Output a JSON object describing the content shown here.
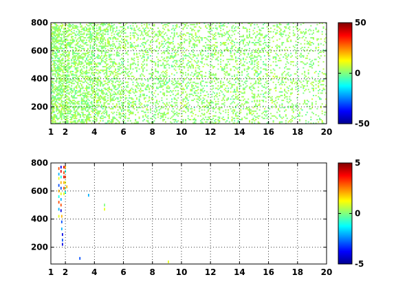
{
  "chart_data": [
    {
      "type": "heatmap",
      "title": "",
      "xlabel": "",
      "ylabel": "",
      "xlim": [
        1,
        20
      ],
      "ylim": [
        80,
        800
      ],
      "xticks": [
        1,
        2,
        4,
        6,
        8,
        10,
        12,
        14,
        16,
        18,
        20
      ],
      "yticks": [
        200,
        400,
        600,
        800
      ],
      "grid": true,
      "colormap": "jet",
      "colorbar": {
        "range": [
          -50,
          50
        ],
        "ticks": [
          -50,
          0,
          50
        ]
      },
      "density_by_x": [
        [
          1,
          0.6
        ],
        [
          2,
          0.55
        ],
        [
          3,
          0.4
        ],
        [
          4,
          0.42
        ],
        [
          5,
          0.36
        ],
        [
          6,
          0.26
        ],
        [
          8,
          0.22
        ],
        [
          10,
          0.24
        ],
        [
          12,
          0.22
        ],
        [
          14,
          0.22
        ],
        [
          16,
          0.2
        ],
        [
          18,
          0.16
        ],
        [
          20,
          0.14
        ]
      ],
      "value_spread": 6,
      "cells": []
    },
    {
      "type": "heatmap",
      "title": "",
      "xlabel": "",
      "ylabel": "",
      "xlim": [
        1,
        20
      ],
      "ylim": [
        80,
        800
      ],
      "xticks": [
        1,
        2,
        4,
        6,
        8,
        10,
        12,
        14,
        16,
        18,
        20
      ],
      "yticks": [
        200,
        400,
        600,
        800
      ],
      "grid": true,
      "colormap": "jet",
      "colorbar": {
        "range": [
          -5,
          5
        ],
        "ticks": [
          -5,
          0,
          5
        ]
      },
      "density_by_x": [],
      "value_spread": 0,
      "cells": [
        {
          "x": 1.55,
          "y": 760,
          "v": 3
        },
        {
          "x": 1.55,
          "y": 720,
          "v": -2
        },
        {
          "x": 1.55,
          "y": 690,
          "v": 1
        },
        {
          "x": 1.55,
          "y": 640,
          "v": -3
        },
        {
          "x": 1.55,
          "y": 600,
          "v": 2
        },
        {
          "x": 1.55,
          "y": 560,
          "v": -1
        },
        {
          "x": 1.55,
          "y": 520,
          "v": 3
        },
        {
          "x": 1.55,
          "y": 470,
          "v": -2
        },
        {
          "x": 1.55,
          "y": 420,
          "v": 1
        },
        {
          "x": 1.7,
          "y": 770,
          "v": -4
        },
        {
          "x": 1.7,
          "y": 740,
          "v": 4
        },
        {
          "x": 1.7,
          "y": 700,
          "v": -1
        },
        {
          "x": 1.7,
          "y": 660,
          "v": 2
        },
        {
          "x": 1.7,
          "y": 620,
          "v": -3
        },
        {
          "x": 1.7,
          "y": 580,
          "v": 1
        },
        {
          "x": 1.7,
          "y": 540,
          "v": -2
        },
        {
          "x": 1.7,
          "y": 500,
          "v": 3
        },
        {
          "x": 1.7,
          "y": 460,
          "v": -4
        },
        {
          "x": 1.75,
          "y": 420,
          "v": 2
        },
        {
          "x": 1.75,
          "y": 380,
          "v": -3
        },
        {
          "x": 1.75,
          "y": 330,
          "v": -2
        },
        {
          "x": 1.8,
          "y": 290,
          "v": -4
        },
        {
          "x": 1.8,
          "y": 250,
          "v": -3
        },
        {
          "x": 1.8,
          "y": 220,
          "v": -4
        },
        {
          "x": 1.9,
          "y": 770,
          "v": 4
        },
        {
          "x": 1.9,
          "y": 730,
          "v": 3
        },
        {
          "x": 1.9,
          "y": 700,
          "v": 4
        },
        {
          "x": 1.9,
          "y": 660,
          "v": 2
        },
        {
          "x": 1.9,
          "y": 620,
          "v": 3
        },
        {
          "x": 1.9,
          "y": 580,
          "v": 1
        },
        {
          "x": 2.0,
          "y": 770,
          "v": 2
        },
        {
          "x": 2.0,
          "y": 740,
          "v": -1
        },
        {
          "x": 2.0,
          "y": 700,
          "v": 3
        },
        {
          "x": 2.0,
          "y": 660,
          "v": 1
        },
        {
          "x": 2.0,
          "y": 620,
          "v": 0
        },
        {
          "x": 2.0,
          "y": 590,
          "v": -1
        },
        {
          "x": 2.1,
          "y": 630,
          "v": 2
        },
        {
          "x": 3.0,
          "y": 120,
          "v": -3
        },
        {
          "x": 3.6,
          "y": 570,
          "v": -2
        },
        {
          "x": 4.7,
          "y": 500,
          "v": 0
        },
        {
          "x": 4.7,
          "y": 470,
          "v": 1
        },
        {
          "x": 9.1,
          "y": 95,
          "v": 1
        }
      ]
    }
  ]
}
